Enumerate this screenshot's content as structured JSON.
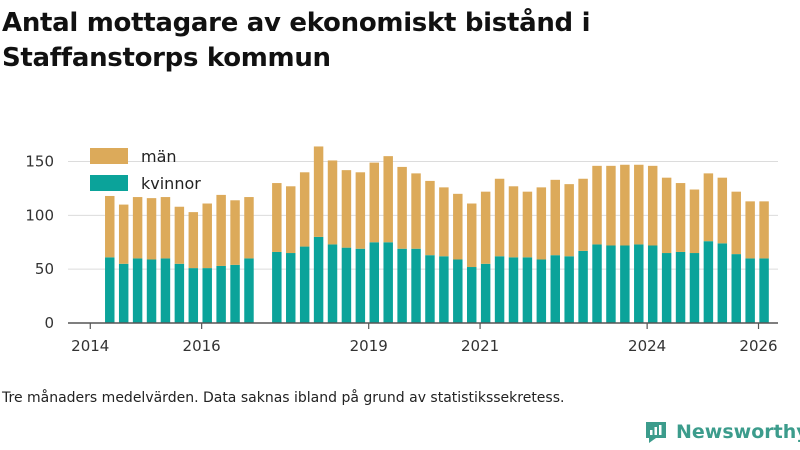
{
  "header": {
    "title": "Antal mottagare av ekonomiskt bistånd i Staffanstorps kommun"
  },
  "footnote": "Tre månaders medelvärden. Data saknas ibland på grund av statistikssekretess.",
  "brand": {
    "name": "Newsworthy",
    "icon": "newsworthy-logo-icon",
    "color": "#3c9c8c"
  },
  "colors": {
    "kvinnor": "#0ba39a",
    "man": "#dcaa5a",
    "grid": "#dcdcdc",
    "axis": "#555555"
  },
  "chart_data": {
    "type": "bar",
    "stacked": true,
    "title": "Antal mottagare av ekonomiskt bistånd i Staffanstorps kommun",
    "xlabel": "",
    "ylabel": "",
    "ylim": [
      0,
      170
    ],
    "yticks": [
      0,
      50,
      100,
      150
    ],
    "xlim": [
      2013.6,
      2026.35
    ],
    "xticks": [
      2014,
      2016,
      2019,
      2021,
      2024,
      2026
    ],
    "grid": true,
    "legend_position": "top-left",
    "bar_width_years": 0.17,
    "x": [
      2014.35,
      2014.6,
      2014.85,
      2015.1,
      2015.35,
      2015.6,
      2015.85,
      2016.1,
      2016.35,
      2016.6,
      2016.85,
      2017.35,
      2017.6,
      2017.85,
      2018.1,
      2018.35,
      2018.6,
      2018.85,
      2019.1,
      2019.35,
      2019.6,
      2019.85,
      2020.1,
      2020.35,
      2020.6,
      2020.85,
      2021.1,
      2021.35,
      2021.6,
      2021.85,
      2022.1,
      2022.35,
      2022.6,
      2022.85,
      2023.1,
      2023.35,
      2023.6,
      2023.85,
      2024.1,
      2024.35,
      2024.6,
      2024.85,
      2025.1,
      2025.35,
      2025.6,
      2025.85,
      2026.1
    ],
    "series": [
      {
        "name": "kvinnor",
        "values": [
          61,
          55,
          60,
          59,
          60,
          55,
          51,
          51,
          53,
          54,
          60,
          66,
          65,
          71,
          80,
          73,
          70,
          69,
          75,
          75,
          69,
          69,
          63,
          62,
          59,
          52,
          55,
          62,
          61,
          61,
          59,
          63,
          62,
          67,
          73,
          72,
          72,
          73,
          72,
          65,
          66,
          65,
          76,
          74,
          64,
          60,
          60
        ]
      },
      {
        "name": "män",
        "values": [
          57,
          55,
          57,
          57,
          57,
          53,
          52,
          60,
          66,
          60,
          57,
          64,
          62,
          69,
          84,
          78,
          72,
          71,
          74,
          80,
          76,
          70,
          69,
          64,
          61,
          59,
          67,
          72,
          66,
          61,
          67,
          70,
          67,
          67,
          73,
          74,
          75,
          74,
          74,
          70,
          64,
          59,
          63,
          61,
          58,
          53,
          53
        ]
      }
    ]
  }
}
